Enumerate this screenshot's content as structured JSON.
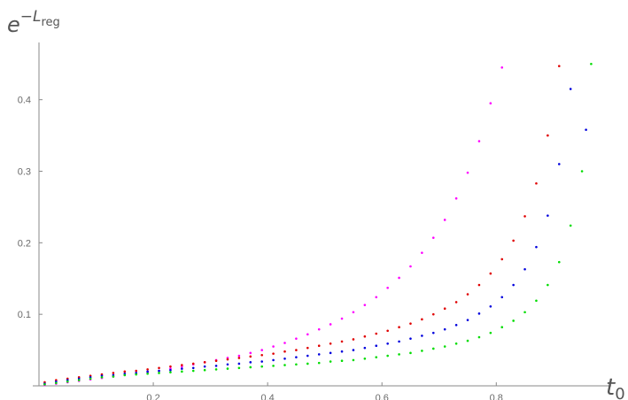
{
  "chart_data": {
    "type": "scatter",
    "title": "",
    "xlabel": "t",
    "xlabel_sub": "0",
    "ylabel_base": "e",
    "ylabel_sup": "−L",
    "ylabel_sup_sub": "reg",
    "xlim": [
      0,
      0.97
    ],
    "ylim": [
      0,
      0.48
    ],
    "xticks": [
      {
        "value": 0.2,
        "label": "0.2"
      },
      {
        "value": 0.4,
        "label": "0.4"
      },
      {
        "value": 0.6,
        "label": "0.6"
      },
      {
        "value": 0.8,
        "label": "0.8"
      }
    ],
    "yticks": [
      {
        "value": 0.1,
        "label": "0.1"
      },
      {
        "value": 0.2,
        "label": "0.2"
      },
      {
        "value": 0.3,
        "label": "0.3"
      },
      {
        "value": 0.4,
        "label": "0.4"
      }
    ],
    "grid": false,
    "colors": {
      "magenta": "#ff00ff",
      "red": "#e00000",
      "blue": "#0000dd",
      "green": "#00dd00",
      "axis": "#8a8a8a",
      "text": "#555555"
    },
    "series": [
      {
        "color": "#ff00ff",
        "x": [
          0.01,
          0.03,
          0.05,
          0.07,
          0.09,
          0.11,
          0.13,
          0.15,
          0.17,
          0.19,
          0.21,
          0.23,
          0.25,
          0.27,
          0.29,
          0.31,
          0.33,
          0.35,
          0.37,
          0.39,
          0.41,
          0.43,
          0.45,
          0.47,
          0.49,
          0.51,
          0.53,
          0.55,
          0.57,
          0.59,
          0.61,
          0.63,
          0.65,
          0.67,
          0.69,
          0.71,
          0.73,
          0.75,
          0.77,
          0.79,
          0.81
        ],
        "y": [
          0.001,
          0.003,
          0.005,
          0.007,
          0.009,
          0.011,
          0.013,
          0.015,
          0.017,
          0.019,
          0.021,
          0.024,
          0.027,
          0.03,
          0.033,
          0.036,
          0.039,
          0.042,
          0.046,
          0.05,
          0.055,
          0.06,
          0.066,
          0.072,
          0.079,
          0.086,
          0.094,
          0.103,
          0.113,
          0.124,
          0.137,
          0.151,
          0.167,
          0.186,
          0.207,
          0.232,
          0.262,
          0.298,
          0.342,
          0.395,
          0.445
        ]
      },
      {
        "color": "#e00000",
        "x": [
          0.01,
          0.03,
          0.05,
          0.07,
          0.09,
          0.11,
          0.13,
          0.15,
          0.17,
          0.19,
          0.21,
          0.23,
          0.25,
          0.27,
          0.29,
          0.31,
          0.33,
          0.35,
          0.37,
          0.39,
          0.41,
          0.43,
          0.45,
          0.47,
          0.49,
          0.51,
          0.53,
          0.55,
          0.57,
          0.59,
          0.61,
          0.63,
          0.65,
          0.67,
          0.69,
          0.71,
          0.73,
          0.75,
          0.77,
          0.79,
          0.81,
          0.83,
          0.85,
          0.87,
          0.89,
          0.91
        ],
        "y": [
          0.005,
          0.008,
          0.01,
          0.012,
          0.014,
          0.016,
          0.018,
          0.02,
          0.021,
          0.023,
          0.025,
          0.027,
          0.029,
          0.031,
          0.033,
          0.035,
          0.037,
          0.039,
          0.041,
          0.043,
          0.045,
          0.048,
          0.05,
          0.053,
          0.056,
          0.059,
          0.062,
          0.065,
          0.069,
          0.073,
          0.077,
          0.082,
          0.087,
          0.093,
          0.1,
          0.108,
          0.117,
          0.128,
          0.141,
          0.157,
          0.177,
          0.203,
          0.237,
          0.283,
          0.35,
          0.447
        ]
      },
      {
        "color": "#0000dd",
        "x": [
          0.01,
          0.03,
          0.05,
          0.07,
          0.09,
          0.11,
          0.13,
          0.15,
          0.17,
          0.19,
          0.21,
          0.23,
          0.25,
          0.27,
          0.29,
          0.31,
          0.33,
          0.35,
          0.37,
          0.39,
          0.41,
          0.43,
          0.45,
          0.47,
          0.49,
          0.51,
          0.53,
          0.55,
          0.57,
          0.59,
          0.61,
          0.63,
          0.65,
          0.67,
          0.69,
          0.71,
          0.73,
          0.75,
          0.77,
          0.79,
          0.81,
          0.83,
          0.85,
          0.87,
          0.89,
          0.91,
          0.93
        ],
        "y": [
          0.003,
          0.006,
          0.008,
          0.01,
          0.012,
          0.014,
          0.015,
          0.017,
          0.018,
          0.02,
          0.021,
          0.022,
          0.024,
          0.025,
          0.027,
          0.028,
          0.03,
          0.031,
          0.033,
          0.034,
          0.036,
          0.038,
          0.04,
          0.042,
          0.044,
          0.046,
          0.048,
          0.05,
          0.053,
          0.056,
          0.059,
          0.062,
          0.066,
          0.07,
          0.074,
          0.079,
          0.085,
          0.092,
          0.101,
          0.111,
          0.124,
          0.141,
          0.163,
          0.194,
          0.238,
          0.31,
          0.415
        ]
      },
      {
        "color": "#00dd00",
        "x": [
          0.01,
          0.03,
          0.05,
          0.07,
          0.09,
          0.11,
          0.13,
          0.15,
          0.17,
          0.19,
          0.21,
          0.23,
          0.25,
          0.27,
          0.29,
          0.31,
          0.33,
          0.35,
          0.37,
          0.39,
          0.41,
          0.43,
          0.45,
          0.47,
          0.49,
          0.51,
          0.53,
          0.55,
          0.57,
          0.59,
          0.61,
          0.63,
          0.65,
          0.67,
          0.69,
          0.71,
          0.73,
          0.75,
          0.77,
          0.79,
          0.81,
          0.83,
          0.85,
          0.87,
          0.89,
          0.91,
          0.93,
          0.95
        ],
        "y": [
          0.002,
          0.004,
          0.006,
          0.008,
          0.01,
          0.012,
          0.013,
          0.015,
          0.016,
          0.017,
          0.018,
          0.019,
          0.02,
          0.021,
          0.022,
          0.023,
          0.024,
          0.025,
          0.026,
          0.027,
          0.028,
          0.029,
          0.03,
          0.031,
          0.032,
          0.034,
          0.035,
          0.036,
          0.038,
          0.04,
          0.042,
          0.044,
          0.046,
          0.049,
          0.052,
          0.055,
          0.059,
          0.063,
          0.068,
          0.074,
          0.082,
          0.091,
          0.103,
          0.119,
          0.141,
          0.173,
          0.224,
          0.3
        ]
      }
    ],
    "extra_points": [
      {
        "series": 2,
        "x": 0.957,
        "y": 0.358
      },
      {
        "series": 3,
        "x": 0.966,
        "y": 0.45
      }
    ]
  }
}
